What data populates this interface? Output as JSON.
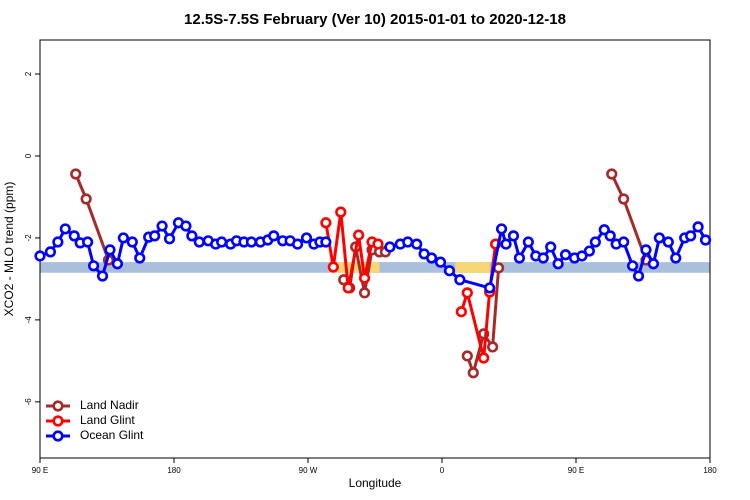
{
  "chart_data": {
    "type": "line",
    "title": "12.5S-7.5S February (Ver 10)   2015-01-01 to 2020-12-18",
    "x_label": "Longitude",
    "y_label": "XCO2 - MLO trend (ppm)",
    "xlim": [
      90,
      540
    ],
    "xticks": [
      {
        "value": 90,
        "label": "90 E"
      },
      {
        "value": 180,
        "label": "180"
      },
      {
        "value": 270,
        "label": "90 W"
      },
      {
        "value": 360,
        "label": "0"
      },
      {
        "value": 450,
        "label": "90 E"
      },
      {
        "value": 540,
        "label": "180"
      }
    ],
    "ylim": [
      -7.37,
      2.83
    ],
    "yticks": [
      -6,
      -4,
      -2,
      0,
      2
    ],
    "band": [
      -2.85,
      -2.59
    ],
    "band_color": "#a9bfdc",
    "band_highlights": [
      [
        285,
        318
      ],
      [
        369,
        392
      ]
    ],
    "highlight_color": "#f7d774",
    "legend": "bottomleft",
    "grid": false,
    "series": [
      {
        "name": "Land Nadir",
        "color": "#a52a2a",
        "x": [
          114,
          121,
          136,
          null,
          294,
          298,
          302,
          308,
          313,
          318,
          322,
          null,
          377,
          381,
          388,
          394,
          398,
          null,
          474,
          482,
          497
        ],
        "values": [
          -0.44,
          -1.05,
          -2.54,
          null,
          -3.02,
          -3.22,
          -2.22,
          -3.34,
          -2.29,
          -2.34,
          -2.34,
          null,
          -4.88,
          -5.29,
          -4.34,
          -4.66,
          -2.73,
          null,
          -0.44,
          -1.05,
          -2.54
        ]
      },
      {
        "name": "Land Glint",
        "color": "#ff0000",
        "x": [
          282,
          287,
          292,
          297,
          304,
          308,
          313,
          317,
          null,
          373,
          377,
          388,
          392,
          396
        ],
        "values": [
          -1.63,
          -2.71,
          -1.37,
          -3.22,
          -1.93,
          -2.98,
          -2.1,
          -2.15,
          null,
          -3.8,
          -3.34,
          -4.93,
          -3.32,
          -2.15
        ]
      },
      {
        "name": "Ocean Glint",
        "color": "#0000ff",
        "x": [
          90,
          97,
          102,
          107,
          113,
          117,
          122,
          126,
          132,
          137,
          142,
          146,
          152,
          157,
          163,
          167,
          172,
          177,
          183,
          188,
          192,
          197,
          203,
          208,
          212,
          218,
          222,
          227,
          232,
          238,
          243,
          247,
          253,
          258,
          263,
          269,
          274,
          278,
          282,
          null,
          325,
          332,
          337,
          343,
          348,
          353,
          359,
          365,
          372,
          392,
          400,
          403,
          408,
          412,
          418,
          423,
          428,
          433,
          438,
          443,
          449,
          454,
          459,
          463,
          469,
          473,
          477,
          482,
          488,
          492,
          497,
          502,
          506,
          512,
          517,
          523,
          527,
          532,
          537
        ],
        "values": [
          -2.44,
          -2.34,
          -2.1,
          -1.78,
          -1.95,
          -2.12,
          -2.1,
          -2.68,
          -2.93,
          -2.29,
          -2.63,
          -2.0,
          -2.1,
          -2.49,
          -1.98,
          -1.95,
          -1.71,
          -2.02,
          -1.63,
          -1.71,
          -1.95,
          -2.1,
          -2.07,
          -2.15,
          -2.1,
          -2.15,
          -2.07,
          -2.1,
          -2.1,
          -2.1,
          -2.05,
          -1.95,
          -2.07,
          -2.07,
          -2.15,
          -2.0,
          -2.15,
          -2.1,
          -2.1,
          null,
          -2.22,
          -2.15,
          -2.1,
          -2.15,
          -2.39,
          -2.49,
          -2.59,
          -2.8,
          -3.02,
          -3.22,
          -1.78,
          -2.15,
          -1.95,
          -2.49,
          -2.1,
          -2.44,
          -2.49,
          -2.22,
          -2.63,
          -2.41,
          -2.49,
          -2.44,
          -2.32,
          -2.1,
          -1.8,
          -1.95,
          -2.15,
          -2.1,
          -2.68,
          -2.93,
          -2.29,
          -2.63,
          -2.0,
          -2.1,
          -2.49,
          -2.0,
          -1.95,
          -1.73,
          -2.05
        ]
      }
    ]
  }
}
